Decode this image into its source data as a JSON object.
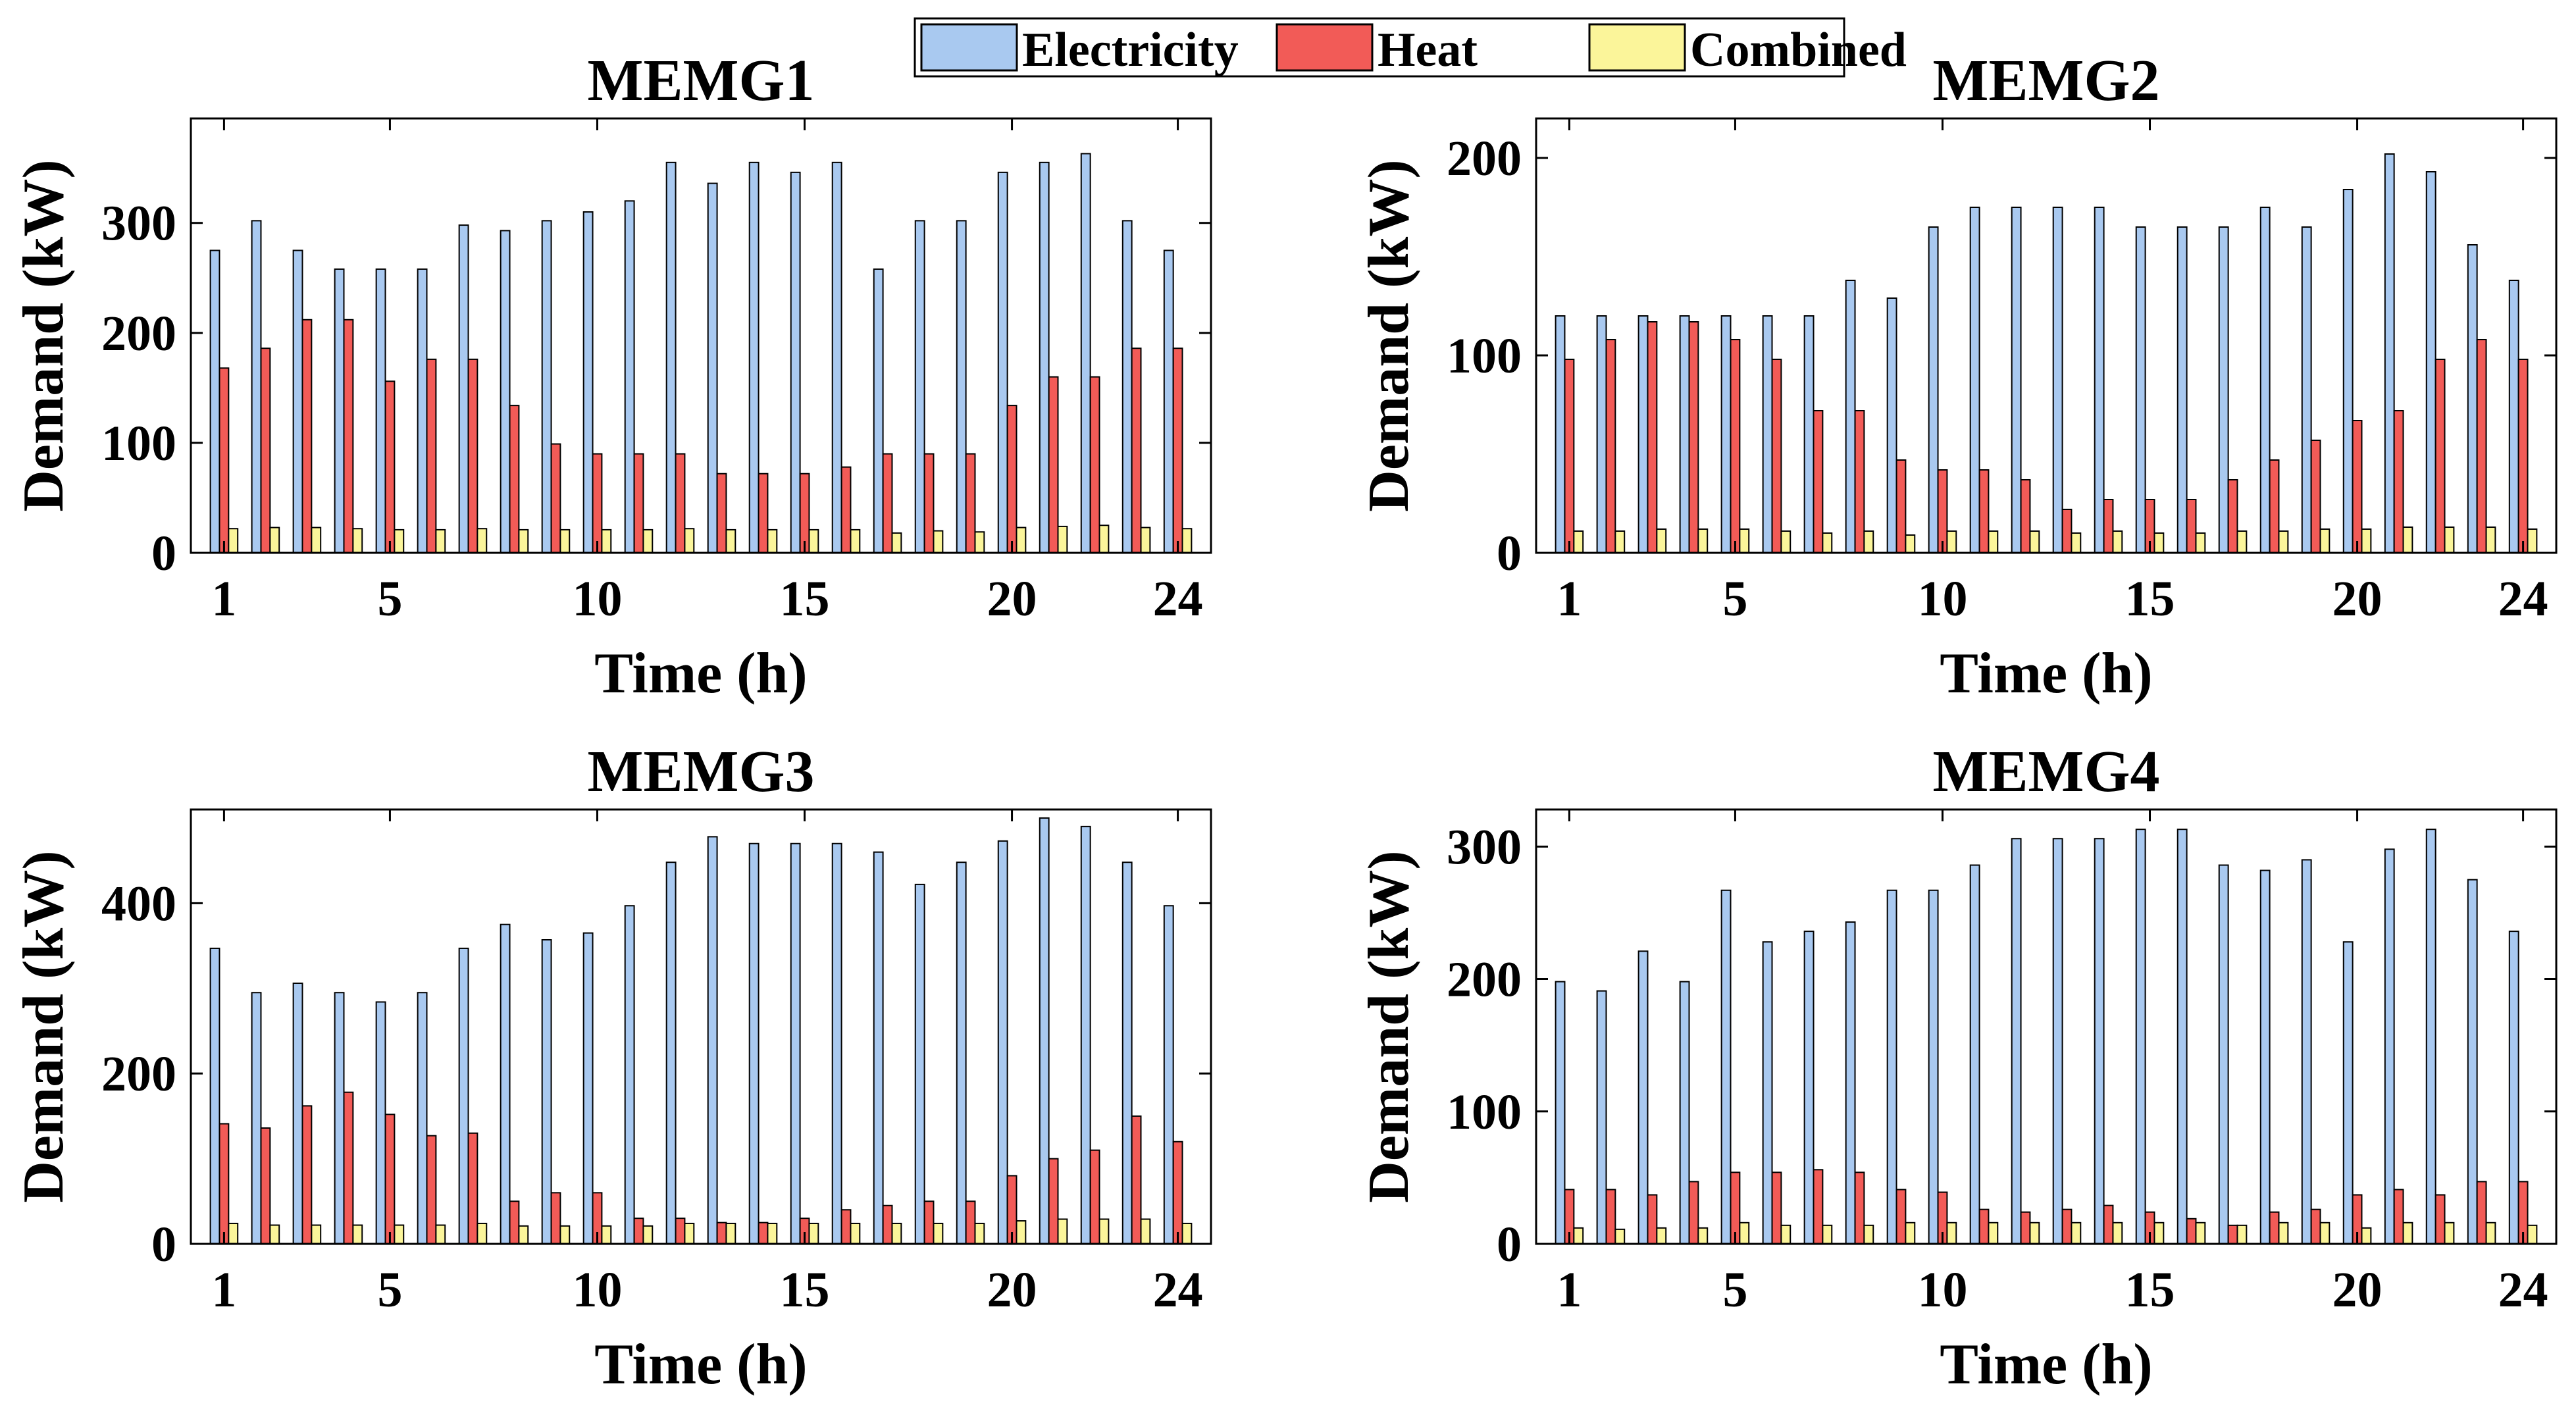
{
  "legend": {
    "entries": [
      {
        "key": "electricity",
        "label": "Electricity",
        "color": "#a9c9f0"
      },
      {
        "key": "heat",
        "label": "Heat",
        "color": "#f25b57"
      },
      {
        "key": "combined",
        "label": "Combined",
        "color": "#fbf59a"
      }
    ]
  },
  "chart_data": [
    {
      "type": "bar",
      "title": "MEMG1",
      "xlabel": "Time (h)",
      "ylabel": "Demand (kW)",
      "xticks": [
        1,
        5,
        10,
        15,
        20,
        24
      ],
      "yticks": [
        0,
        100,
        200,
        300
      ],
      "ylim": [
        0,
        395
      ],
      "categories": [
        1,
        2,
        3,
        4,
        5,
        6,
        7,
        8,
        9,
        10,
        11,
        12,
        13,
        14,
        15,
        16,
        17,
        18,
        19,
        20,
        21,
        22,
        23,
        24
      ],
      "series": [
        {
          "name": "Electricity",
          "values": [
            275,
            302,
            275,
            258,
            258,
            258,
            298,
            293,
            302,
            310,
            320,
            355,
            336,
            355,
            346,
            355,
            258,
            302,
            302,
            346,
            355,
            363,
            302,
            275
          ]
        },
        {
          "name": "Heat",
          "values": [
            168,
            186,
            212,
            212,
            156,
            176,
            176,
            134,
            99,
            90,
            90,
            90,
            72,
            72,
            72,
            78,
            90,
            90,
            90,
            134,
            160,
            160,
            186,
            186
          ]
        },
        {
          "name": "Combined",
          "values": [
            22,
            23,
            23,
            22,
            21,
            21,
            22,
            21,
            21,
            21,
            21,
            22,
            21,
            21,
            21,
            21,
            18,
            20,
            19,
            23,
            24,
            25,
            23,
            22
          ]
        }
      ]
    },
    {
      "type": "bar",
      "title": "MEMG2",
      "xlabel": "Time (h)",
      "ylabel": "Demand (kW)",
      "xticks": [
        1,
        5,
        10,
        15,
        20,
        24
      ],
      "yticks": [
        0,
        100,
        200
      ],
      "ylim": [
        0,
        220
      ],
      "categories": [
        1,
        2,
        3,
        4,
        5,
        6,
        7,
        8,
        9,
        10,
        11,
        12,
        13,
        14,
        15,
        16,
        17,
        18,
        19,
        20,
        21,
        22,
        23,
        24
      ],
      "series": [
        {
          "name": "Electricity",
          "values": [
            120,
            120,
            120,
            120,
            120,
            120,
            120,
            138,
            129,
            165,
            175,
            175,
            175,
            175,
            165,
            165,
            165,
            175,
            165,
            184,
            202,
            193,
            156,
            138
          ]
        },
        {
          "name": "Heat",
          "values": [
            98,
            108,
            117,
            117,
            108,
            98,
            72,
            72,
            47,
            42,
            42,
            37,
            22,
            27,
            27,
            27,
            37,
            47,
            57,
            67,
            72,
            98,
            108,
            98
          ]
        },
        {
          "name": "Combined",
          "values": [
            11,
            11,
            12,
            12,
            12,
            11,
            10,
            11,
            9,
            11,
            11,
            11,
            10,
            11,
            10,
            10,
            11,
            11,
            12,
            12,
            13,
            13,
            13,
            12
          ]
        }
      ]
    },
    {
      "type": "bar",
      "title": "MEMG3",
      "xlabel": "Time (h)",
      "ylabel": "Demand (kW)",
      "xticks": [
        1,
        5,
        10,
        15,
        20,
        24
      ],
      "yticks": [
        0,
        200,
        400
      ],
      "ylim": [
        0,
        510
      ],
      "categories": [
        1,
        2,
        3,
        4,
        5,
        6,
        7,
        8,
        9,
        10,
        11,
        12,
        13,
        14,
        15,
        16,
        17,
        18,
        19,
        20,
        21,
        22,
        23,
        24
      ],
      "series": [
        {
          "name": "Electricity",
          "values": [
            347,
            295,
            306,
            295,
            284,
            295,
            347,
            375,
            357,
            365,
            397,
            448,
            478,
            470,
            470,
            470,
            460,
            422,
            448,
            473,
            500,
            490,
            448,
            397
          ]
        },
        {
          "name": "Heat",
          "values": [
            141,
            136,
            162,
            178,
            152,
            127,
            130,
            50,
            60,
            60,
            30,
            30,
            25,
            25,
            30,
            40,
            45,
            50,
            50,
            80,
            100,
            110,
            150,
            120
          ]
        },
        {
          "name": "Combined",
          "values": [
            24,
            22,
            22,
            22,
            22,
            22,
            24,
            21,
            21,
            21,
            21,
            24,
            24,
            24,
            24,
            24,
            24,
            24,
            24,
            27,
            29,
            29,
            29,
            24
          ]
        }
      ]
    },
    {
      "type": "bar",
      "title": "MEMG4",
      "xlabel": "Time (h)",
      "ylabel": "Demand (kW)",
      "xticks": [
        1,
        5,
        10,
        15,
        20,
        24
      ],
      "yticks": [
        0,
        100,
        200,
        300
      ],
      "ylim": [
        0,
        328
      ],
      "categories": [
        1,
        2,
        3,
        4,
        5,
        6,
        7,
        8,
        9,
        10,
        11,
        12,
        13,
        14,
        15,
        16,
        17,
        18,
        19,
        20,
        21,
        22,
        23,
        24
      ],
      "series": [
        {
          "name": "Electricity",
          "values": [
            198,
            191,
            221,
            198,
            267,
            228,
            236,
            243,
            267,
            267,
            286,
            306,
            306,
            306,
            313,
            313,
            286,
            282,
            290,
            228,
            298,
            313,
            275,
            236
          ]
        },
        {
          "name": "Heat",
          "values": [
            41,
            41,
            37,
            47,
            54,
            54,
            56,
            54,
            41,
            39,
            26,
            24,
            26,
            29,
            24,
            19,
            14,
            24,
            26,
            37,
            41,
            37,
            47,
            47
          ]
        },
        {
          "name": "Combined",
          "values": [
            12,
            11,
            12,
            12,
            16,
            14,
            14,
            14,
            16,
            16,
            16,
            16,
            16,
            16,
            16,
            16,
            14,
            16,
            16,
            12,
            16,
            16,
            16,
            14
          ]
        }
      ]
    }
  ]
}
